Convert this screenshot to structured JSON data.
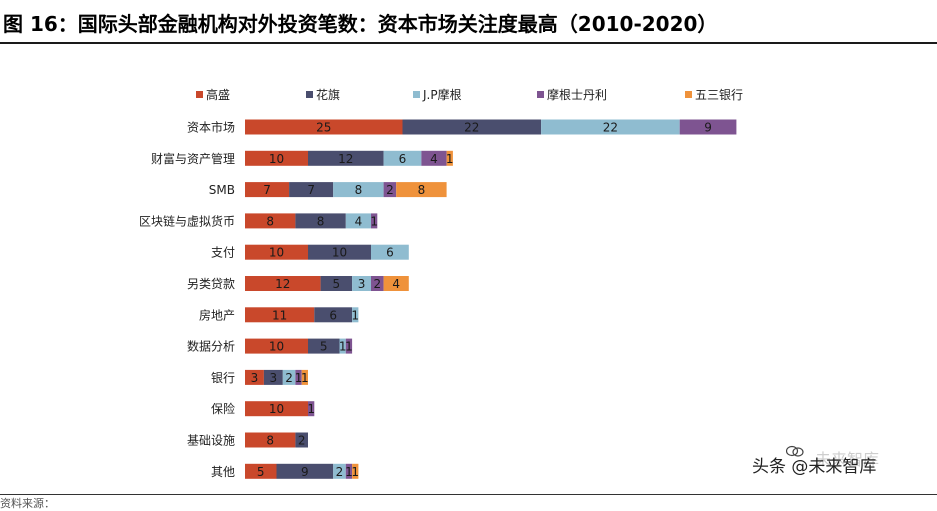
{
  "figure": {
    "title": "图 16：国际头部金融机构对外投资笔数：资本市场关注度最高（2010-2020）"
  },
  "footer_fragment": "资料来源：",
  "watermark": {
    "main": "头条 @未来智库",
    "faint": "未来智库"
  },
  "colors": {
    "高盛": "#c9482b",
    "花旗": "#4a4e6e",
    "J.P摩根": "#8fbcd0",
    "摩根士丹利": "#7e5491",
    "五三银行": "#ef923b"
  },
  "chart_data": {
    "type": "bar",
    "orientation": "horizontal",
    "stacked": true,
    "legend_position": "top",
    "grid": false,
    "categories": [
      "资本市场",
      "财富与资产管理",
      "SMB",
      "区块链与虚拟货币",
      "支付",
      "另类贷款",
      "房地产",
      "数据分析",
      "银行",
      "保险",
      "基础设施",
      "其他"
    ],
    "series": [
      {
        "name": "高盛",
        "values": [
          25,
          10,
          7,
          8,
          10,
          12,
          11,
          10,
          3,
          10,
          8,
          5
        ]
      },
      {
        "name": "花旗",
        "values": [
          22,
          12,
          7,
          8,
          10,
          5,
          6,
          5,
          3,
          0,
          2,
          9
        ]
      },
      {
        "name": "J.P摩根",
        "values": [
          22,
          6,
          8,
          4,
          6,
          3,
          1,
          1,
          2,
          0,
          0,
          2
        ]
      },
      {
        "name": "摩根士丹利",
        "values": [
          9,
          4,
          2,
          1,
          0,
          2,
          0,
          1,
          1,
          1,
          0,
          1
        ]
      },
      {
        "name": "五三银行",
        "values": [
          0,
          1,
          8,
          0,
          0,
          4,
          0,
          0,
          1,
          0,
          0,
          1
        ]
      }
    ]
  }
}
